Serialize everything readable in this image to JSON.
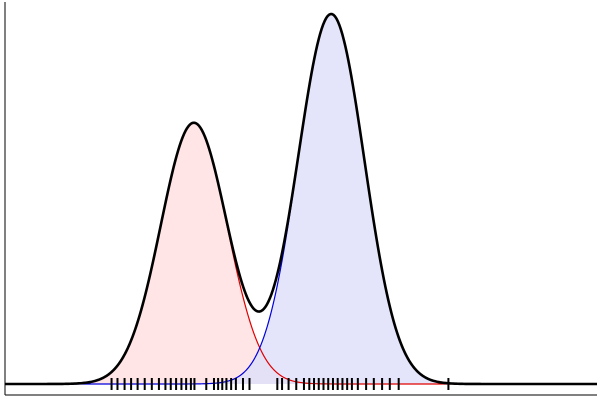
{
  "chart_data": {
    "type": "area",
    "title": "",
    "xlabel": "",
    "ylabel": "",
    "xlim": [
      0,
      100
    ],
    "ylim": [
      0,
      1.0
    ],
    "grid": false,
    "legend": "none",
    "series": [
      {
        "kind": "component",
        "mean": 31.9,
        "sd": 5.6,
        "amplitude": 0.706,
        "line_color": "#e00000",
        "fill_color": "#ffe0e0"
      },
      {
        "kind": "component",
        "mean": 55.1,
        "sd": 5.6,
        "amplitude": 1.0,
        "line_color": "#0000dd",
        "fill_color": "#dfe0fa"
      },
      {
        "kind": "mixture",
        "of": [
          0,
          1
        ],
        "line_color": "#000000"
      }
    ],
    "rug": [
      18.0,
      19.0,
      20.2,
      21.3,
      22.4,
      23.6,
      24.8,
      26.0,
      27.1,
      28.0,
      28.9,
      29.8,
      30.6,
      31.4,
      32.0,
      34.0,
      35.3,
      36.0,
      36.7,
      37.4,
      38.2,
      39.0,
      40.2,
      41.3,
      46.0,
      46.8,
      47.9,
      49.2,
      50.5,
      51.4,
      52.2,
      53.0,
      53.8,
      54.6,
      55.4,
      56.2,
      57.0,
      57.8,
      58.6,
      59.6,
      61.0,
      62.3,
      63.7,
      65.0,
      66.5,
      74.9
    ]
  }
}
